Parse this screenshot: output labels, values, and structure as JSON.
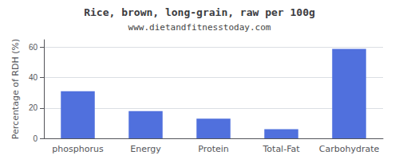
{
  "chart_data": {
    "type": "bar",
    "title": "Rice, brown, long-grain, raw per 100g",
    "subtitle": "www.dietandfitnesstoday.com",
    "categories": [
      "phosphorus",
      "Energy",
      "Protein",
      "Total-Fat",
      "Carbohydrate"
    ],
    "values": [
      31,
      18,
      13,
      6,
      59
    ],
    "ylabel": "Percentage of RDH (%)",
    "ylim": [
      0,
      65
    ],
    "yticks": [
      0,
      20,
      40,
      60
    ],
    "grid": true
  }
}
